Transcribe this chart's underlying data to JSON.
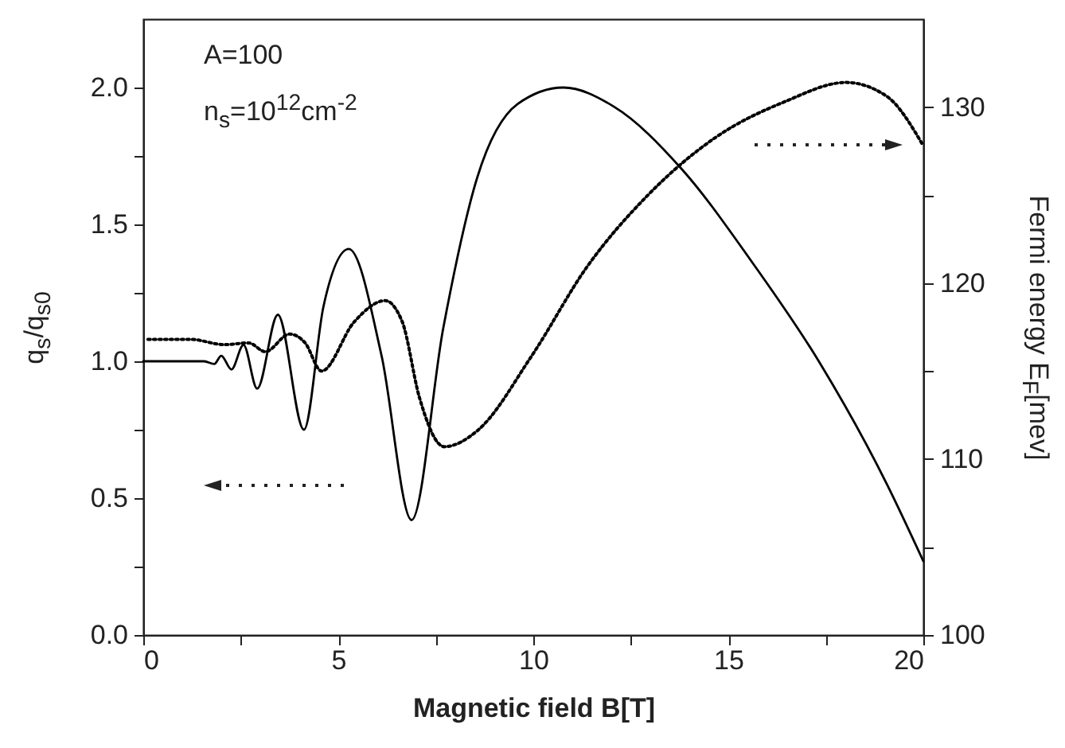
{
  "chart_data": {
    "type": "line",
    "xlabel": "Magnetic field B[T]",
    "ylabel": "q$_{s}$/q$_{s0}$",
    "y2label": "Fermi energy E$_{F}$[mev]",
    "annotations": [
      "A=100",
      "n$_{s}$=10$^{12}$cm$^{-2}$"
    ],
    "xlim": [
      0,
      20
    ],
    "xticks": [
      0,
      5,
      10,
      15,
      20,
      {
        "value": 2.5,
        "label": null
      },
      {
        "value": 7.5,
        "label": null
      },
      {
        "value": 12.5,
        "label": null
      },
      {
        "value": 17.5,
        "label": null
      }
    ],
    "ylim": [
      0,
      2.25
    ],
    "yticks": [
      {
        "value": 0,
        "label": "0.0"
      },
      0.5,
      {
        "value": 1,
        "label": "1.0"
      },
      1.5,
      {
        "value": 2,
        "label": "2.0"
      },
      {
        "value": 0.25,
        "label": null
      },
      {
        "value": 0.75,
        "label": null
      },
      {
        "value": 1.25,
        "label": null
      },
      {
        "value": 1.75,
        "label": null
      }
    ],
    "y2lim": [
      100,
      135
    ],
    "y2ticks": [
      100,
      110,
      120,
      130,
      {
        "value": 105,
        "label": null
      },
      {
        "value": 115,
        "label": null
      },
      {
        "value": 125,
        "label": null
      }
    ],
    "grid": false,
    "marker": "none",
    "series": [
      {
        "color": "#000000",
        "line_style": "solid",
        "x": [
          0,
          1.56,
          1.82,
          2.0,
          2.26,
          2.57,
          2.92,
          3.45,
          4.12,
          4.62,
          5.27,
          6.11,
          6.88,
          7.69,
          8.56,
          9.6,
          10.77,
          12.07,
          13.82,
          15.57,
          17.32,
          19.07,
          20
        ],
        "values": [
          1.0,
          1.0,
          0.99,
          1.02,
          0.97,
          1.06,
          0.9,
          1.17,
          0.75,
          1.2,
          1.41,
          1.02,
          0.42,
          1.12,
          1.67,
          1.94,
          2.0,
          1.93,
          1.7,
          1.37,
          1.0,
          0.55,
          0.27
        ]
      },
      {
        "color": "#000000",
        "line_style": "dotted",
        "axis": "y2",
        "x": [
          0.12,
          1.21,
          2.08,
          2.7,
          3.13,
          3.75,
          4.15,
          4.57,
          5.41,
          6.2,
          6.64,
          7.08,
          7.72,
          8.56,
          9.97,
          11.37,
          12.94,
          14.69,
          16.44,
          18.02,
          19.07,
          20
        ],
        "values": [
          116.8,
          116.8,
          116.5,
          116.6,
          116.1,
          117.1,
          116.6,
          115.0,
          117.8,
          119.0,
          117.8,
          113.5,
          110.7,
          111.6,
          115.9,
          120.9,
          125.0,
          128.3,
          130.3,
          131.4,
          130.6,
          127.8
        ]
      }
    ]
  }
}
